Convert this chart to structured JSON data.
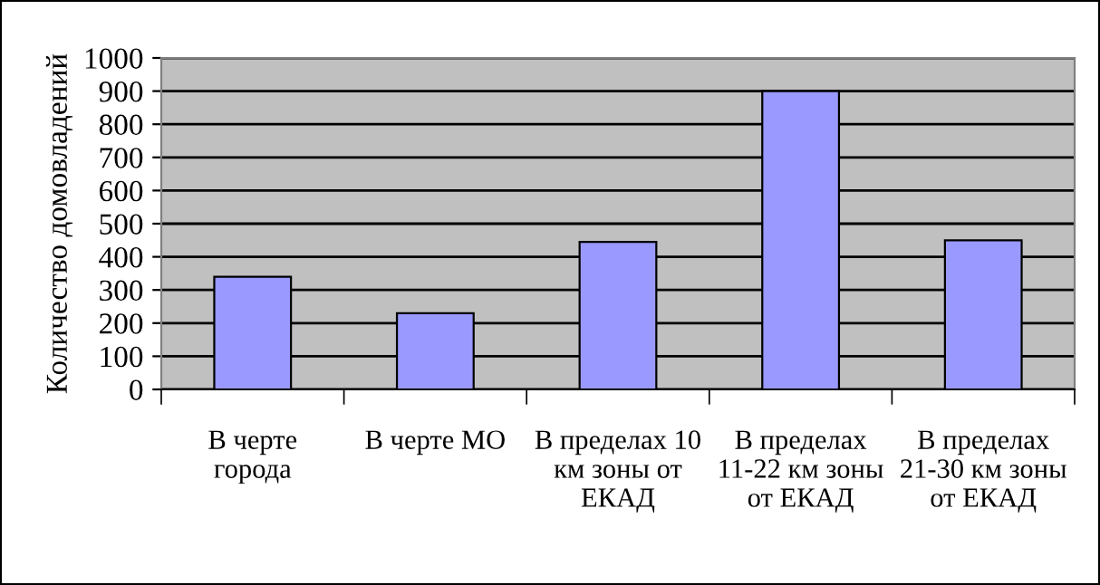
{
  "chart_data": {
    "type": "bar",
    "ylabel": "Количество домовладений",
    "categories": [
      "В черте\nгорода",
      "В черте МО",
      "В пределах 10\nкм зоны от\nЕКАД",
      "В пределах\n11-22 км зоны\nот ЕКАД",
      "В пределах\n21-30 км зоны\nот ЕКАД"
    ],
    "values": [
      340,
      230,
      445,
      900,
      450
    ],
    "color": "#9999ff",
    "ylim": [
      0,
      1000
    ],
    "yticks": [
      0,
      100,
      200,
      300,
      400,
      500,
      600,
      700,
      800,
      900,
      1000
    ],
    "grid": "y",
    "legend": false
  }
}
